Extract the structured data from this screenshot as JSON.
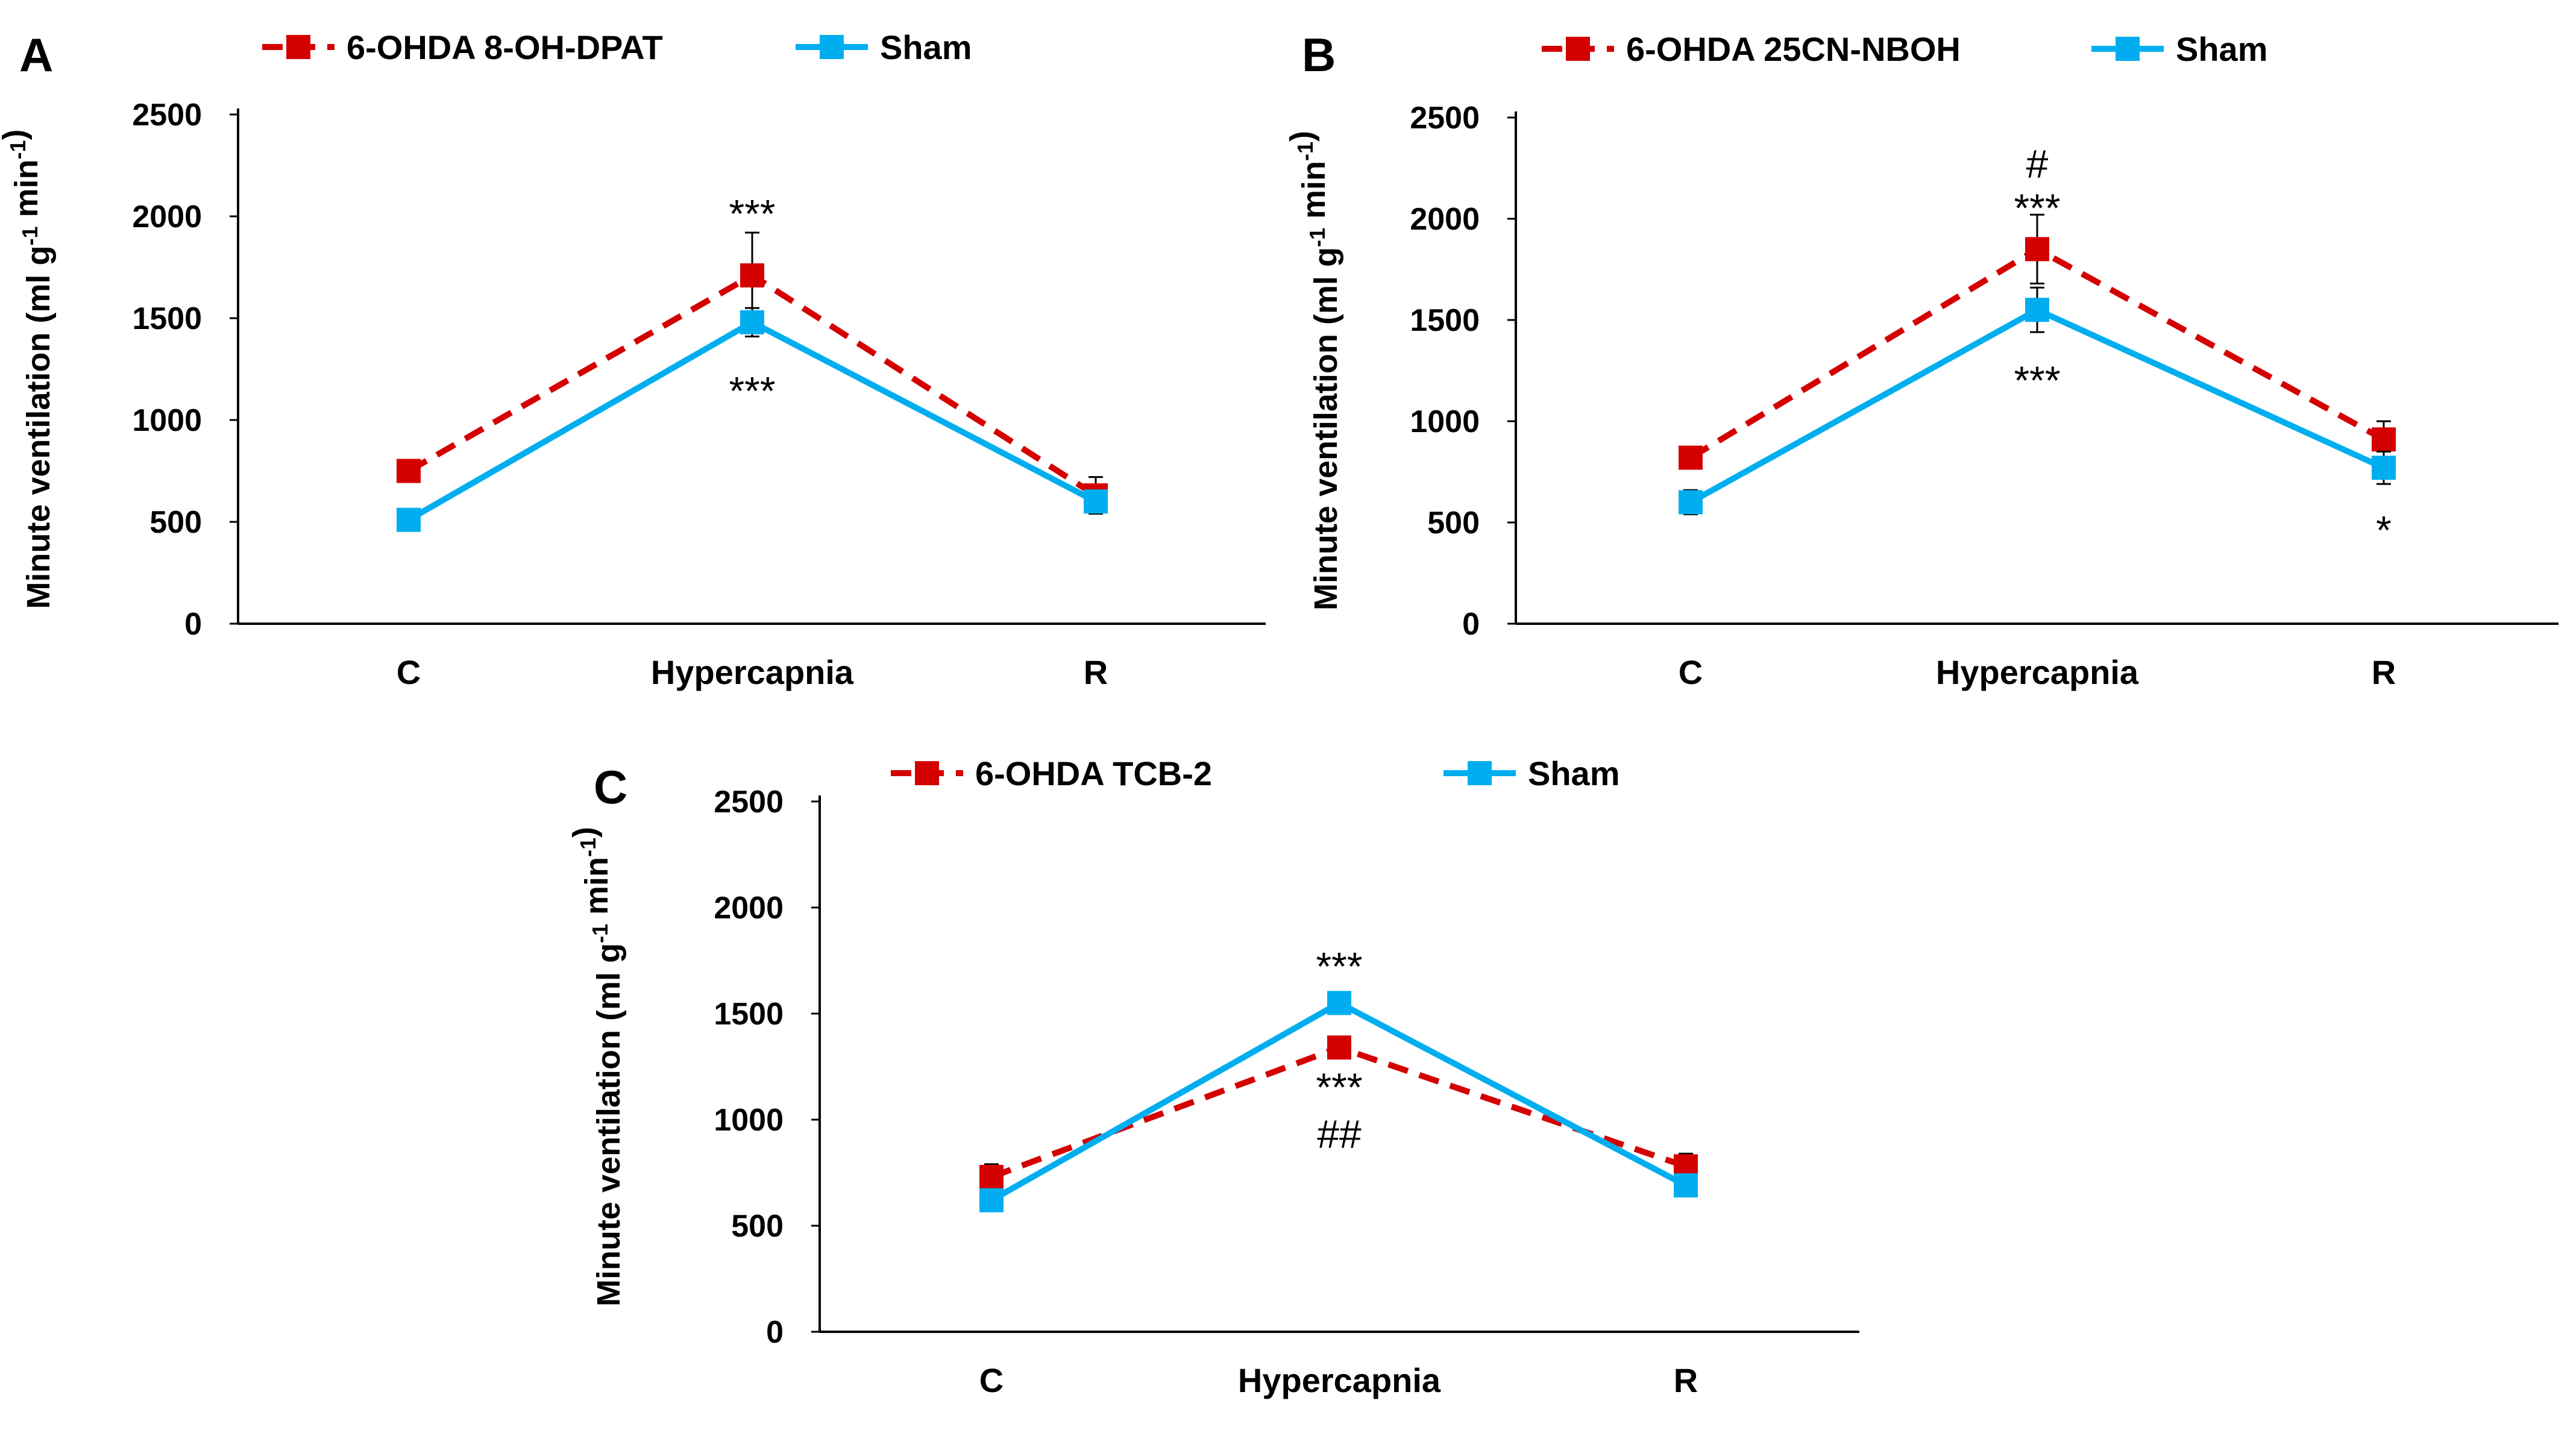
{
  "colors": {
    "treated": "#d40000",
    "sham": "#00aeef"
  },
  "chart_data": [
    {
      "panel": "A",
      "type": "line",
      "categories": [
        "C",
        "Hypercapnia",
        "R"
      ],
      "series": [
        {
          "name": "6-OHDA 8-OH-DPAT",
          "style": "dashed",
          "color": "#d40000",
          "values": [
            750,
            1710,
            630
          ],
          "errors": [
            40,
            210,
            90
          ]
        },
        {
          "name": "Sham",
          "style": "solid",
          "color": "#00aeef",
          "values": [
            510,
            1480,
            600
          ],
          "errors": [
            20,
            70,
            30
          ]
        }
      ],
      "ylabel": "Minute ventilation (ml g-1 min-1)",
      "ylabel_parts": {
        "main": "Minute ventilation (ml g",
        "sup1": "-1",
        "mid": " min",
        "sup2": "-1",
        "end": ")"
      },
      "yticks": [
        "0",
        "500",
        "1000",
        "1500",
        "2000",
        "2500"
      ],
      "ylim": [
        0,
        2500
      ],
      "annotations": [
        {
          "text": "***",
          "category": "Hypercapnia",
          "value": 2010
        },
        {
          "text": "***",
          "category": "Hypercapnia",
          "value": 1140
        }
      ]
    },
    {
      "panel": "B",
      "type": "line",
      "categories": [
        "C",
        "Hypercapnia",
        "R"
      ],
      "series": [
        {
          "name": "6-OHDA 25CN-NBOH",
          "style": "dashed",
          "color": "#d40000",
          "values": [
            820,
            1850,
            910
          ],
          "errors": [
            40,
            170,
            90
          ]
        },
        {
          "name": "Sham",
          "style": "solid",
          "color": "#00aeef",
          "values": [
            600,
            1550,
            770
          ],
          "errors": [
            60,
            110,
            80
          ]
        }
      ],
      "ylabel": "Minute ventilation (ml g-1 min-1)",
      "ylabel_parts": {
        "main": "Minute ventilation (ml g",
        "sup1": "-1",
        "mid": " min",
        "sup2": "-1",
        "end": ")"
      },
      "yticks": [
        "0",
        "500",
        "1000",
        "1500",
        "2000",
        "2500"
      ],
      "ylim": [
        0,
        2500
      ],
      "annotations": [
        {
          "text": "#",
          "category": "Hypercapnia",
          "value": 2270
        },
        {
          "text": "***",
          "category": "Hypercapnia",
          "value": 2050
        },
        {
          "text": "***",
          "category": "Hypercapnia",
          "value": 1200
        },
        {
          "text": "*",
          "category": "R",
          "value": 460
        }
      ]
    },
    {
      "panel": "C",
      "type": "line",
      "categories": [
        "C",
        "Hypercapnia",
        "R"
      ],
      "series": [
        {
          "name": "6-OHDA TCB-2",
          "style": "dashed",
          "color": "#d40000",
          "values": [
            730,
            1340,
            780
          ],
          "errors": [
            60,
            40,
            60
          ]
        },
        {
          "name": "Sham",
          "style": "solid",
          "color": "#00aeef",
          "values": [
            620,
            1550,
            690
          ],
          "errors": [
            30,
            30,
            30
          ]
        }
      ],
      "ylabel": "Minute ventilation (ml g-1 min-1)",
      "ylabel_parts": {
        "main": "Minute ventilation (ml g",
        "sup1": "-1",
        "mid": " min",
        "sup2": "-1",
        "end": ")"
      },
      "yticks": [
        "0",
        "500",
        "1000",
        "1500",
        "2000",
        "2500"
      ],
      "ylim": [
        0,
        2500
      ],
      "annotations": [
        {
          "text": "***",
          "category": "Hypercapnia",
          "value": 1720
        },
        {
          "text": "***",
          "category": "Hypercapnia",
          "value": 1150
        },
        {
          "text": "##",
          "category": "Hypercapnia",
          "value": 930
        }
      ]
    }
  ]
}
